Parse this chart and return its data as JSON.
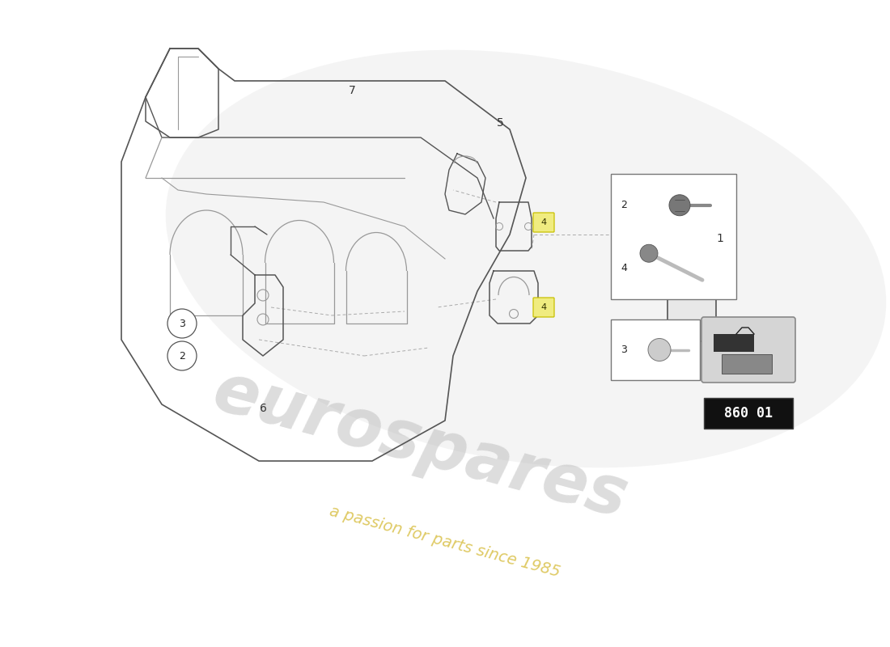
{
  "bg_color": "#ffffff",
  "watermark_text1": "eurospares",
  "watermark_text2": "a passion for parts since 1985",
  "part_number": "860 01",
  "line_color": "#555555",
  "line_color_light": "#999999",
  "swoosh_color": "#e0e0e0",
  "callout_circle_bg": "#ffffff",
  "callout_4_bg": "#f0ec80",
  "callout_4_border": "#c8c000"
}
